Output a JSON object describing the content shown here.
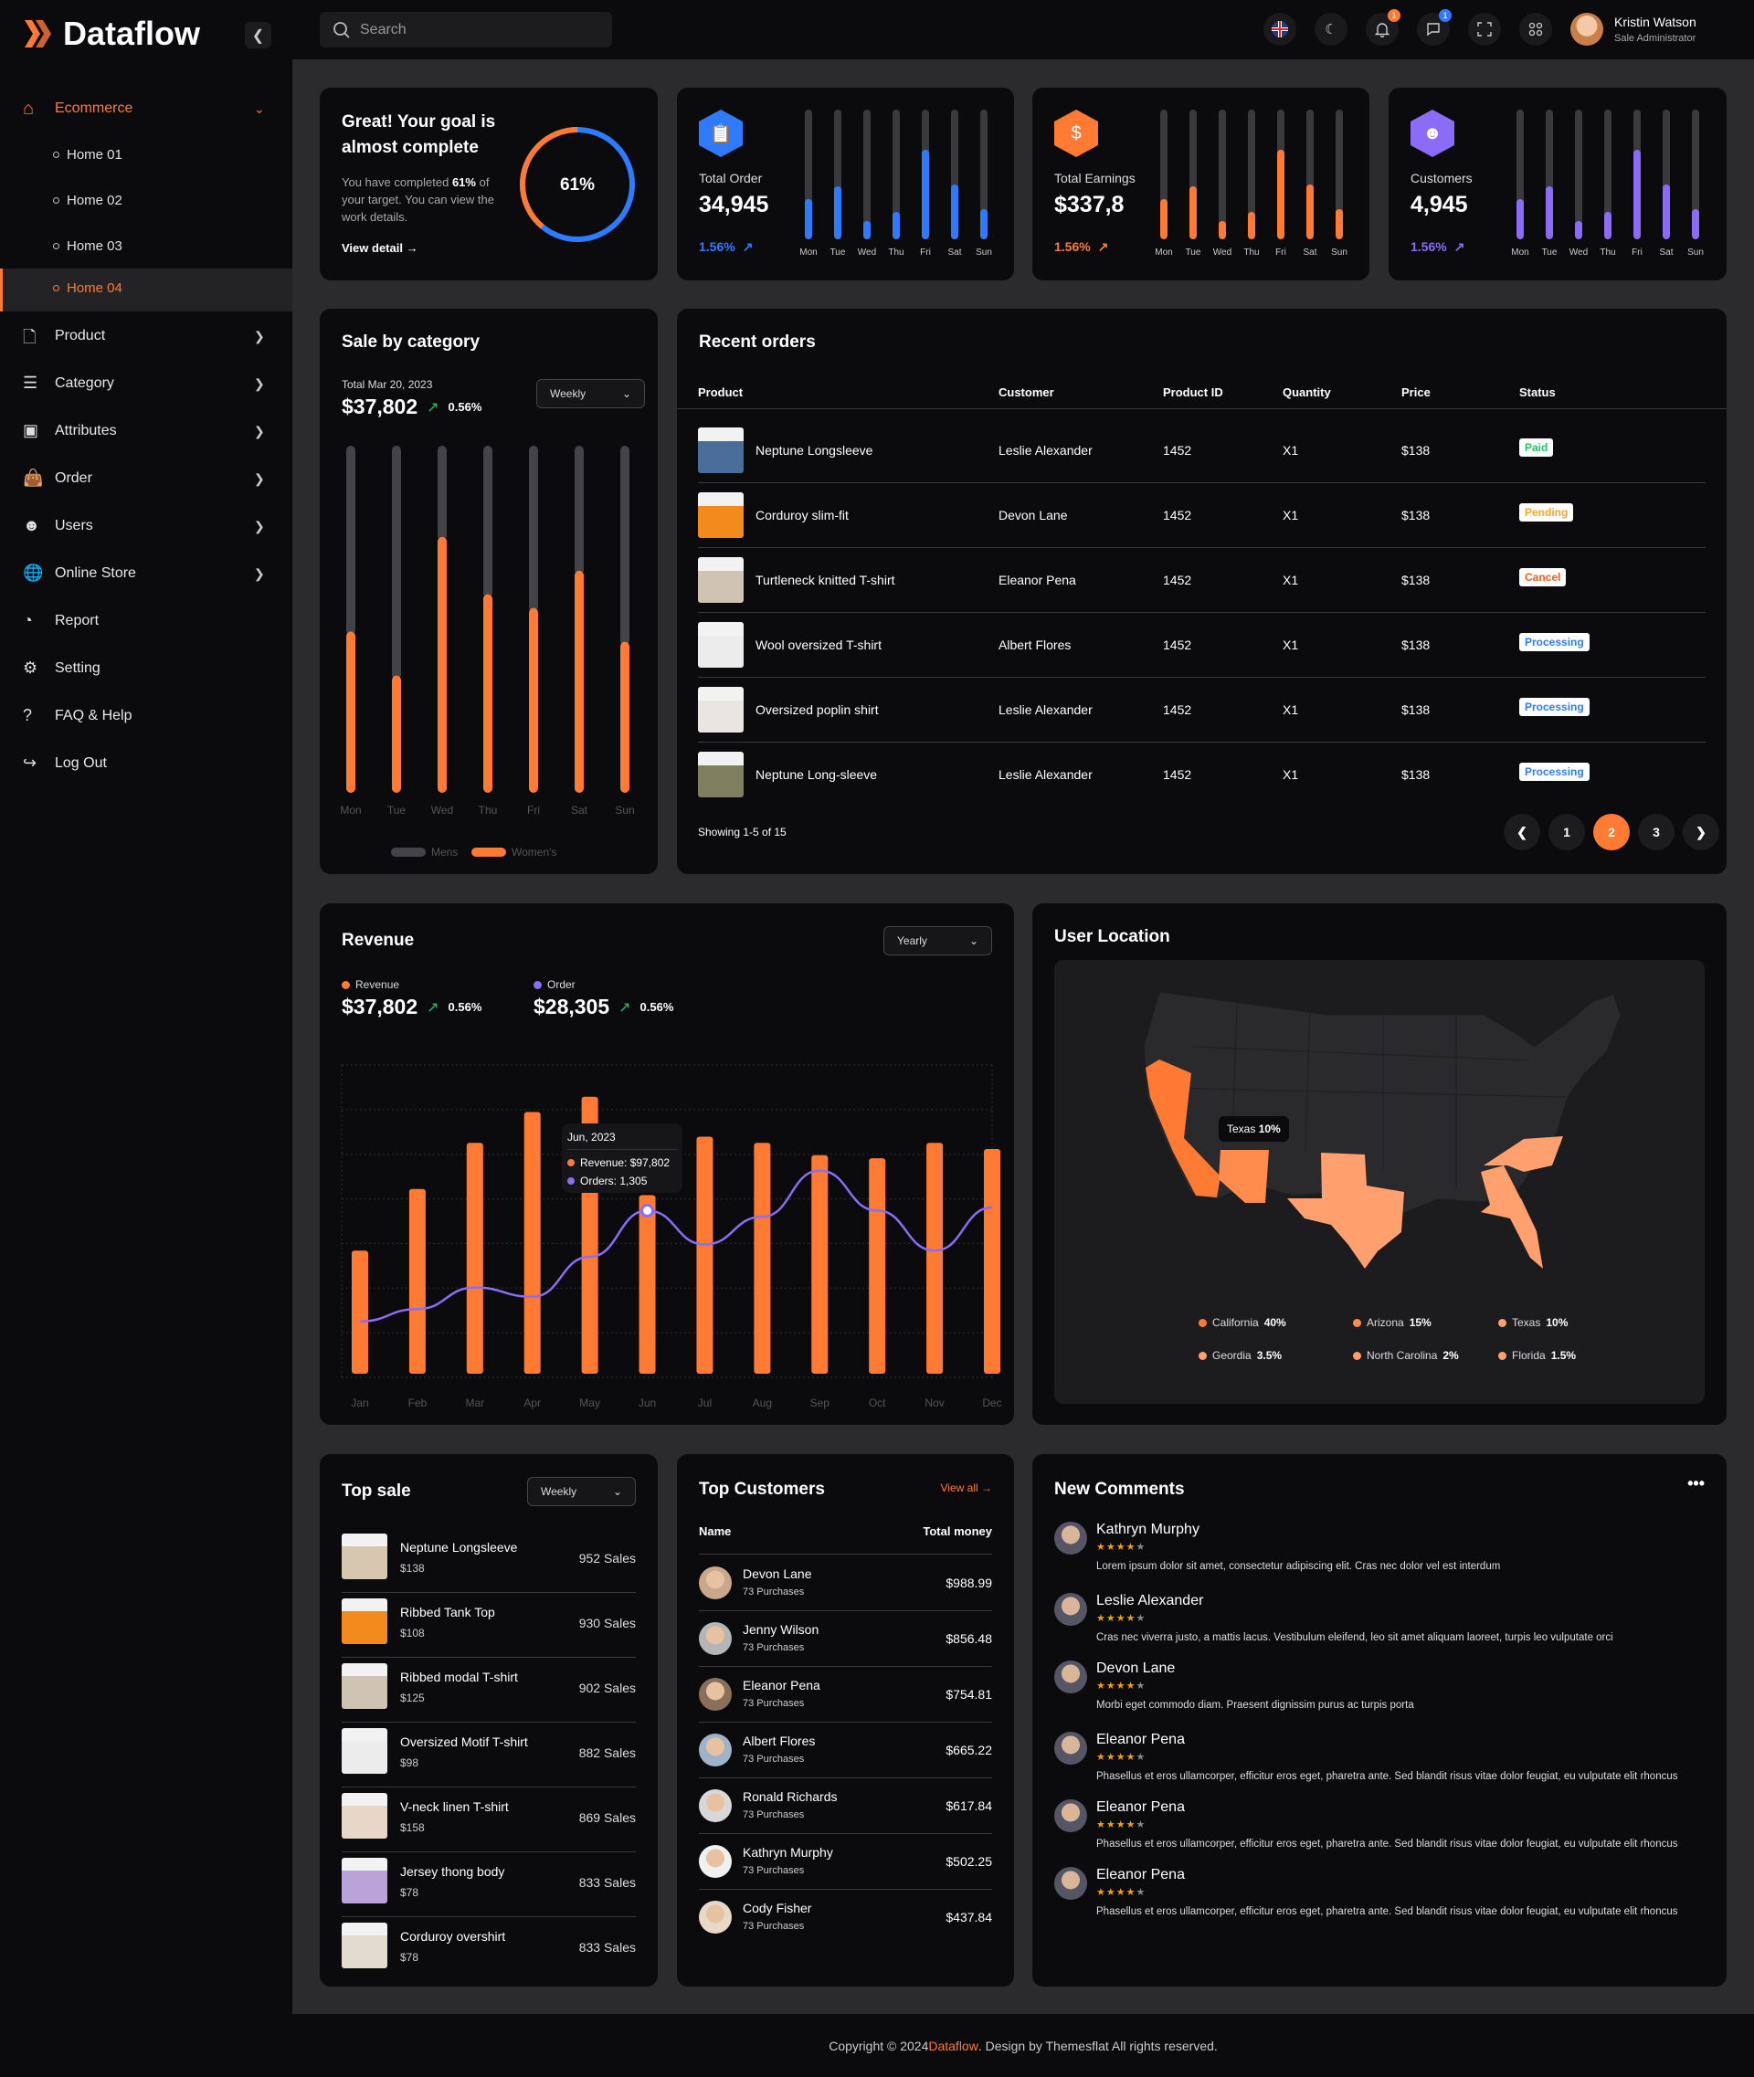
{
  "colors": {
    "accent": "#ff7a33",
    "accent_light": "#ffa06e",
    "blue": "#2f7bff",
    "purple": "#8b6cf6",
    "green": "#22c55e",
    "paid": "#22c55e",
    "pending": "#f5a623",
    "cancel": "#ff5722",
    "processing": "#2f7bff"
  },
  "brand": {
    "name": "Dataflow"
  },
  "sidebar": {
    "group": {
      "label": "Ecommerce",
      "icon": "home-icon",
      "expanded": true,
      "children": [
        {
          "label": "Home 01"
        },
        {
          "label": "Home 02"
        },
        {
          "label": "Home 03"
        },
        {
          "label": "Home 04",
          "active": true
        }
      ]
    },
    "items": [
      {
        "label": "Product",
        "icon": "product-icon",
        "chevron": true
      },
      {
        "label": "Category",
        "icon": "layers-icon",
        "chevron": true
      },
      {
        "label": "Attributes",
        "icon": "archive-icon",
        "chevron": true
      },
      {
        "label": "Order",
        "icon": "bag-icon",
        "chevron": true
      },
      {
        "label": "Users",
        "icon": "user-icon",
        "chevron": true
      },
      {
        "label": "Online Store",
        "icon": "globe-icon",
        "chevron": true
      },
      {
        "label": "Report",
        "icon": "pie-chart-icon",
        "chevron": false
      },
      {
        "label": "Setting",
        "icon": "gear-icon",
        "chevron": false
      },
      {
        "label": "FAQ & Help",
        "icon": "help-icon",
        "chevron": false
      },
      {
        "label": "Log Out",
        "icon": "logout-icon",
        "chevron": false
      }
    ]
  },
  "header": {
    "search_placeholder": "Search",
    "notifications_count": "1",
    "messages_count": "1",
    "user": {
      "name": "Kristin Watson",
      "role": "Sale Administrator"
    }
  },
  "goal": {
    "title": "Great! Your goal is almost complete",
    "text_pre": "You have completed ",
    "text_pct": "61%",
    "text_post": " of your target. You can view the work details.",
    "link": "View detail",
    "percent": 61,
    "percent_label": "61%"
  },
  "stats": [
    {
      "label": "Total Order",
      "value": "34,945",
      "change": "1.56%",
      "color": "#2f7bff",
      "icon": "clipboard-icon"
    },
    {
      "label": "Total Earnings",
      "value": "$337,8",
      "change": "1.56%",
      "color": "#ff7a33",
      "icon": "dollar-icon"
    },
    {
      "label": "Customers",
      "value": "4,945",
      "change": "1.56%",
      "color": "#8b6cf6",
      "icon": "user-icon"
    }
  ],
  "stat_days": [
    "Mon",
    "Tue",
    "Wed",
    "Thu",
    "Fri",
    "Sat",
    "Sun"
  ],
  "stat_bar_fill": [
    0.31,
    0.41,
    0.14,
    0.21,
    0.69,
    0.42,
    0.23
  ],
  "sale_category": {
    "title": "Sale by category",
    "total_label": "Total Mar 20, 2023",
    "total": "$37,802",
    "change": "0.56%",
    "dropdown": "Weekly",
    "chart_data": {
      "type": "bar",
      "stacked": true,
      "categories": [
        "Mon",
        "Tue",
        "Wed",
        "Thu",
        "Fri",
        "Sat",
        "Sun"
      ],
      "ylim": [
        0,
        100
      ],
      "series": [
        {
          "name": "Mens",
          "color": "#444448",
          "values": [
            55,
            68,
            27,
            44,
            48,
            37,
            58
          ]
        },
        {
          "name": "Women's",
          "color": "#ff7a33",
          "values": [
            45,
            32,
            73,
            56,
            52,
            63,
            42
          ]
        }
      ]
    }
  },
  "recent_orders": {
    "title": "Recent orders",
    "columns": [
      "Product",
      "Customer",
      "Product ID",
      "Quantity",
      "Price",
      "Status"
    ],
    "rows": [
      {
        "product": "Neptune Longsleeve",
        "customer": "Leslie Alexander",
        "id": "1452",
        "qty": "X1",
        "price": "$138",
        "status": "Paid",
        "thumb": "#4a6d9a"
      },
      {
        "product": "Corduroy slim-fit",
        "customer": "Devon Lane",
        "id": "1452",
        "qty": "X1",
        "price": "$138",
        "status": "Pending",
        "thumb": "#f28a1c"
      },
      {
        "product": "Turtleneck knitted T-shirt",
        "customer": "Eleanor Pena",
        "id": "1452",
        "qty": "X1",
        "price": "$138",
        "status": "Cancel",
        "thumb": "#cfc3b3"
      },
      {
        "product": "Wool oversized T-shirt",
        "customer": "Albert Flores",
        "id": "1452",
        "qty": "X1",
        "price": "$138",
        "status": "Processing",
        "thumb": "#ececec"
      },
      {
        "product": "Oversized poplin shirt",
        "customer": "Leslie Alexander",
        "id": "1452",
        "qty": "X1",
        "price": "$138",
        "status": "Processing",
        "thumb": "#e9e6e1"
      },
      {
        "product": "Neptune Long-sleeve",
        "customer": "Leslie Alexander",
        "id": "1452",
        "qty": "X1",
        "price": "$138",
        "status": "Processing",
        "thumb": "#7d7f5e"
      }
    ],
    "showing": "Showing 1-5 of 15",
    "pages": [
      "1",
      "2",
      "3"
    ],
    "current_page": "2"
  },
  "revenue": {
    "title": "Revenue",
    "dropdown": "Yearly",
    "legend": [
      {
        "name": "Revenue",
        "value": "$37,802",
        "change": "0.56%",
        "color": "#ff7a33"
      },
      {
        "name": "Order",
        "value": "$28,305",
        "change": "0.56%",
        "color": "#8b6cf6"
      }
    ],
    "tooltip": {
      "title": "Jun, 2023",
      "revenue": "Revenue: $97,802",
      "orders": "Orders: 1,305"
    },
    "chart_data": {
      "type": "bar+line",
      "categories": [
        "Jan",
        "Feb",
        "Mar",
        "Apr",
        "May",
        "Jun",
        "Jul",
        "Aug",
        "Sep",
        "Oct",
        "Nov",
        "Dec"
      ],
      "ylim": [
        0,
        100
      ],
      "grid": true,
      "series": [
        {
          "name": "Revenue",
          "type": "bar",
          "color": "#ff7a33",
          "values": [
            40,
            60,
            75,
            85,
            90,
            58,
            77,
            75,
            71,
            70,
            75,
            73
          ]
        },
        {
          "name": "Order",
          "type": "line",
          "color": "#8b6cf6",
          "values": [
            17,
            21,
            28,
            25,
            38,
            53,
            42,
            51,
            66,
            53,
            40,
            54
          ]
        }
      ],
      "highlight": "Jun"
    }
  },
  "location": {
    "title": "User Location",
    "tooltip_state": "Texas",
    "tooltip_value": "10%",
    "legend": [
      {
        "state": "California",
        "pct": "40%",
        "color": "#ff7a33"
      },
      {
        "state": "Arizona",
        "pct": "15%",
        "color": "#ff8c4d"
      },
      {
        "state": "Texas",
        "pct": "10%",
        "color": "#ffa06e"
      },
      {
        "state": "Geordia",
        "pct": "3.5%",
        "color": "#ffa06e"
      },
      {
        "state": "North Carolina",
        "pct": "2%",
        "color": "#ffa06e"
      },
      {
        "state": "Florida",
        "pct": "1.5%",
        "color": "#ffa06e"
      }
    ]
  },
  "top_sale": {
    "title": "Top sale",
    "dropdown": "Weekly",
    "items": [
      {
        "name": "Neptune Longsleeve",
        "price": "$138",
        "sales": "952 Sales",
        "thumb": "#d8c7b0"
      },
      {
        "name": "Ribbed Tank Top",
        "price": "$108",
        "sales": "930 Sales",
        "thumb": "#f28a1c"
      },
      {
        "name": "Ribbed modal T-shirt",
        "price": "$125",
        "sales": "902 Sales",
        "thumb": "#cfc3b3"
      },
      {
        "name": "Oversized Motif T-shirt",
        "price": "$98",
        "sales": "882 Sales",
        "thumb": "#ececec"
      },
      {
        "name": "V-neck linen T-shirt",
        "price": "$158",
        "sales": "869 Sales",
        "thumb": "#e8d6c8"
      },
      {
        "name": "Jersey thong body",
        "price": "$78",
        "sales": "833 Sales",
        "thumb": "#b9a3d8"
      },
      {
        "name": "Corduroy overshirt",
        "price": "$78",
        "sales": "833 Sales",
        "thumb": "#e3dbcf"
      }
    ]
  },
  "top_customers": {
    "title": "Top Customers",
    "view_all": "View all",
    "col_name": "Name",
    "col_total": "Total money",
    "items": [
      {
        "name": "Devon Lane",
        "purchases": "73 Purchases",
        "total": "$988.99"
      },
      {
        "name": "Jenny Wilson",
        "purchases": "73 Purchases",
        "total": "$856.48"
      },
      {
        "name": "Eleanor Pena",
        "purchases": "73 Purchases",
        "total": "$754.81"
      },
      {
        "name": "Albert Flores",
        "purchases": "73 Purchases",
        "total": "$665.22"
      },
      {
        "name": "Ronald Richards",
        "purchases": "73 Purchases",
        "total": "$617.84"
      },
      {
        "name": "Kathryn Murphy",
        "purchases": "73 Purchases",
        "total": "$502.25"
      },
      {
        "name": "Cody Fisher",
        "purchases": "73 Purchases",
        "total": "$437.84"
      }
    ]
  },
  "comments": {
    "title": "New Comments",
    "items": [
      {
        "name": "Kathryn Murphy",
        "rating": 4,
        "text": "Lorem ipsum dolor sit amet, consectetur adipiscing elit. Cras nec dolor vel est interdum"
      },
      {
        "name": "Leslie Alexander",
        "rating": 4,
        "text": "Cras nec viverra justo, a mattis lacus. Vestibulum eleifend, leo sit amet aliquam laoreet, turpis leo vulputate orci"
      },
      {
        "name": "Devon Lane",
        "rating": 4,
        "text": "Morbi eget commodo diam. Praesent dignissim purus ac turpis porta"
      },
      {
        "name": "Eleanor Pena",
        "rating": 4,
        "text": "Phasellus et eros ullamcorper, efficitur eros eget, pharetra ante. Sed blandit risus vitae dolor feugiat, eu vulputate elit rhoncus"
      },
      {
        "name": "Eleanor Pena",
        "rating": 4,
        "text": "Phasellus et eros ullamcorper, efficitur eros eget, pharetra ante. Sed blandit risus vitae dolor feugiat, eu vulputate elit rhoncus"
      },
      {
        "name": "Eleanor Pena",
        "rating": 4,
        "text": "Phasellus et eros ullamcorper, efficitur eros eget, pharetra ante. Sed blandit risus vitae dolor feugiat, eu vulputate elit rhoncus"
      }
    ]
  },
  "footer": {
    "pre": "Copyright © 2024 ",
    "brand": "Dataflow",
    "post": ". Design by Themesflat All rights reserved."
  }
}
